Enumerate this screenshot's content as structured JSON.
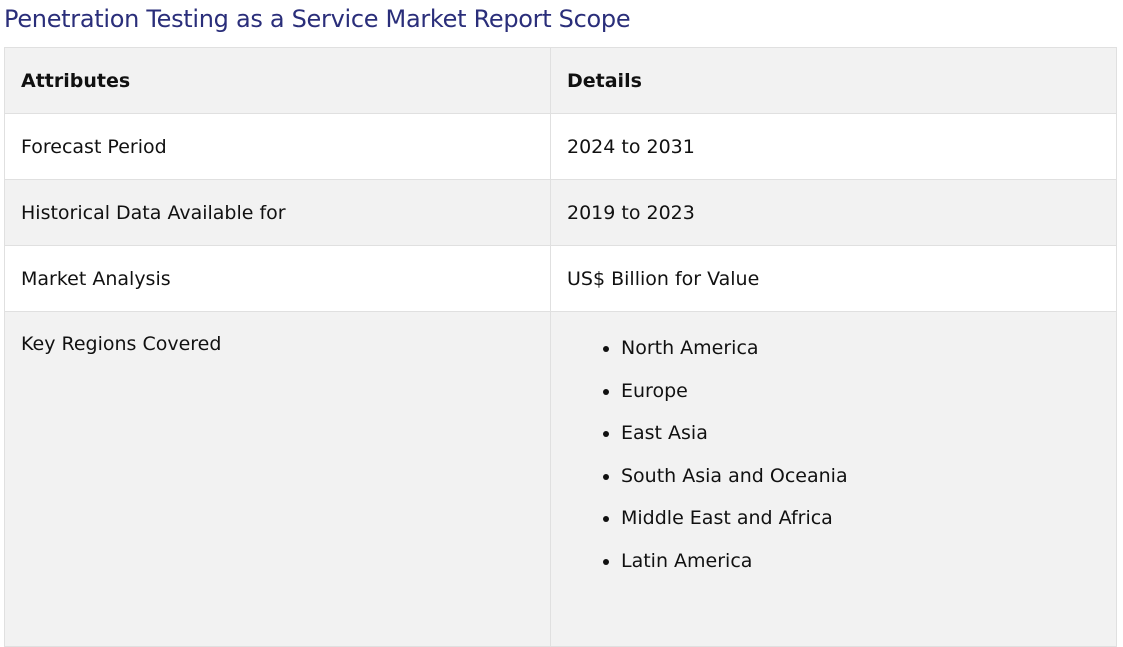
{
  "title": "Penetration Testing as a Service Market Report Scope",
  "colors": {
    "title": "#2a2e7a",
    "row_alt": "#f2f2f2"
  },
  "table": {
    "headers": [
      "Attributes",
      "Details"
    ],
    "rows": [
      {
        "attribute": "Forecast Period",
        "detail": "2024 to 2031"
      },
      {
        "attribute": "Historical Data Available for",
        "detail": "2019 to 2023"
      },
      {
        "attribute": "Market Analysis",
        "detail": "US$ Billion for Value"
      },
      {
        "attribute": "Key Regions Covered",
        "regions": [
          "North America",
          "Europe",
          "East Asia",
          "South Asia and Oceania",
          "Middle East and Africa",
          "Latin America"
        ]
      }
    ]
  }
}
